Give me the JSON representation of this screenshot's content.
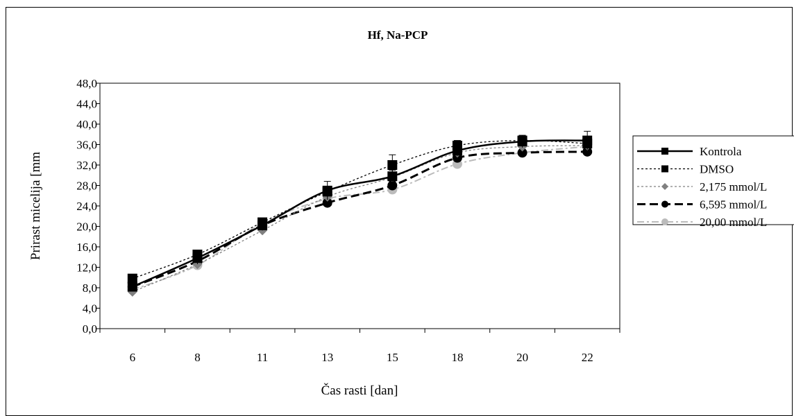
{
  "chart_data": {
    "type": "line",
    "title": "Hf, Na-PCP",
    "xlabel": "Čas rasti [dan]",
    "ylabel": "Prirast micelija [mm",
    "categories": [
      "6",
      "8",
      "11",
      "13",
      "15",
      "18",
      "20",
      "22"
    ],
    "ylim": [
      0,
      48
    ],
    "yticks": [
      "0,0",
      "4,0",
      "8,0",
      "12,0",
      "16,0",
      "20,0",
      "24,0",
      "28,0",
      "32,0",
      "36,0",
      "40,0",
      "44,0",
      "48,0"
    ],
    "grid": false,
    "legend_position": "right",
    "series": [
      {
        "name": "Kontrola",
        "values": [
          8.2,
          13.8,
          20.2,
          27.0,
          29.8,
          34.8,
          36.6,
          36.8
        ],
        "errors": [
          0.8,
          1.2,
          1.0,
          1.8,
          1.2,
          1.0,
          1.2,
          1.8
        ],
        "color": "#000000",
        "dash": "solid",
        "marker": "square"
      },
      {
        "name": "DMSO",
        "values": [
          9.8,
          14.5,
          20.8,
          26.8,
          32.0,
          35.8,
          36.8,
          36.2
        ],
        "errors": [
          0.6,
          0.8,
          0.8,
          1.0,
          2.0,
          1.0,
          1.0,
          1.0
        ],
        "color": "#000000",
        "dash": "dotted",
        "marker": "square"
      },
      {
        "name": "2,175 mmol/L",
        "values": [
          7.2,
          12.6,
          19.2,
          25.8,
          29.6,
          34.4,
          35.6,
          35.8
        ],
        "errors": [
          0.4,
          0.6,
          0.6,
          0.8,
          0.8,
          0.8,
          0.8,
          0.8
        ],
        "color": "#808080",
        "dash": "dotted",
        "marker": "diamond"
      },
      {
        "name": "6,595 mmol/L",
        "values": [
          8.2,
          13.2,
          20.2,
          24.6,
          28.0,
          33.4,
          34.4,
          34.6
        ],
        "errors": [
          0.4,
          0.6,
          0.6,
          0.6,
          0.8,
          0.8,
          0.6,
          0.6
        ],
        "color": "#000000",
        "dash": "dash",
        "marker": "circle"
      },
      {
        "name": "20,00 mmol/L",
        "values": [
          7.6,
          12.4,
          20.6,
          25.4,
          27.2,
          32.2,
          34.4,
          35.6
        ],
        "errors": [
          0.4,
          0.6,
          0.6,
          0.6,
          0.6,
          0.6,
          0.6,
          0.6
        ],
        "color": "#bbbbbb",
        "dash": "dashdot",
        "marker": "circle"
      }
    ]
  }
}
